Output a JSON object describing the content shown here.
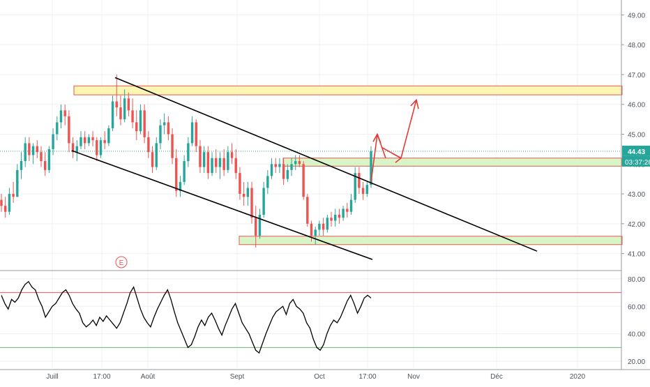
{
  "chart_data": [
    {
      "type": "candlestick",
      "title": "",
      "ylim": [
        40.5,
        49.5
      ],
      "y_ticks": [
        "41.00",
        "42.00",
        "43.00",
        "44.00",
        "45.00",
        "46.00",
        "47.00",
        "48.00",
        "49.00"
      ],
      "x_ticks": [
        "Juill",
        "17:00",
        "Août",
        "Sept",
        "Oct",
        "17:00",
        "Nov",
        "Déc",
        "2020"
      ],
      "last_price": "44.43",
      "countdown": "03:37:26",
      "earnings_marker": "E",
      "grid": true,
      "series": [
        {
          "values": [
            [
              42.8,
              43.0,
              42.4,
              42.6
            ],
            [
              42.6,
              42.9,
              42.2,
              42.4
            ],
            [
              42.4,
              43.2,
              42.3,
              43.0
            ],
            [
              43.0,
              43.4,
              42.7,
              42.9
            ],
            [
              42.9,
              44.0,
              42.9,
              43.8
            ],
            [
              43.8,
              44.4,
              43.5,
              44.1
            ],
            [
              44.1,
              44.9,
              43.9,
              44.7
            ],
            [
              44.7,
              44.9,
              44.1,
              44.3
            ],
            [
              44.3,
              44.7,
              44.0,
              44.6
            ],
            [
              44.6,
              44.8,
              44.2,
              44.4
            ],
            [
              44.4,
              44.6,
              43.9,
              44.1
            ],
            [
              44.1,
              44.4,
              43.6,
              43.8
            ],
            [
              43.8,
              44.6,
              43.7,
              44.5
            ],
            [
              44.5,
              45.2,
              44.3,
              45.0
            ],
            [
              45.0,
              45.6,
              44.8,
              45.4
            ],
            [
              45.4,
              46.0,
              45.2,
              45.8
            ],
            [
              45.8,
              46.0,
              45.3,
              45.6
            ],
            [
              45.6,
              45.8,
              44.4,
              44.7
            ],
            [
              44.7,
              44.9,
              44.2,
              44.4
            ],
            [
              44.4,
              44.8,
              44.1,
              44.6
            ],
            [
              44.6,
              45.1,
              44.5,
              44.9
            ],
            [
              44.9,
              45.1,
              44.5,
              44.7
            ],
            [
              44.7,
              45.0,
              44.6,
              44.9
            ],
            [
              44.9,
              45.1,
              44.6,
              44.8
            ],
            [
              44.8,
              44.9,
              44.1,
              44.3
            ],
            [
              44.3,
              44.9,
              44.2,
              44.8
            ],
            [
              44.8,
              45.1,
              44.5,
              44.7
            ],
            [
              44.7,
              45.3,
              44.6,
              45.2
            ],
            [
              45.2,
              46.3,
              45.1,
              46.1
            ],
            [
              46.1,
              47.0,
              45.6,
              45.9
            ],
            [
              45.9,
              46.3,
              45.3,
              45.5
            ],
            [
              45.5,
              46.5,
              45.4,
              46.2
            ],
            [
              46.2,
              46.4,
              45.6,
              45.8
            ],
            [
              45.8,
              46.2,
              45.2,
              45.4
            ],
            [
              45.4,
              45.8,
              44.8,
              45.1
            ],
            [
              45.1,
              46.0,
              45.0,
              45.8
            ],
            [
              45.8,
              46.0,
              44.7,
              44.9
            ],
            [
              44.9,
              45.1,
              44.2,
              44.4
            ],
            [
              44.4,
              44.6,
              43.7,
              43.9
            ],
            [
              43.9,
              44.9,
              43.8,
              44.7
            ],
            [
              44.7,
              45.5,
              44.5,
              45.3
            ],
            [
              45.3,
              45.7,
              45.0,
              45.4
            ],
            [
              45.4,
              45.6,
              44.8,
              45.0
            ],
            [
              45.0,
              45.2,
              44.0,
              44.2
            ],
            [
              44.2,
              44.5,
              42.9,
              43.1
            ],
            [
              43.1,
              43.6,
              42.9,
              43.4
            ],
            [
              43.4,
              44.3,
              43.3,
              44.1
            ],
            [
              44.1,
              44.9,
              43.9,
              44.7
            ],
            [
              44.7,
              45.6,
              44.6,
              45.4
            ],
            [
              45.4,
              45.5,
              44.4,
              44.6
            ],
            [
              44.6,
              44.8,
              43.7,
              43.9
            ],
            [
              43.9,
              44.6,
              43.7,
              44.4
            ],
            [
              44.4,
              44.6,
              43.5,
              43.7
            ],
            [
              43.7,
              44.4,
              43.6,
              44.2
            ],
            [
              44.2,
              44.5,
              43.7,
              43.9
            ],
            [
              43.9,
              44.4,
              43.5,
              44.2
            ],
            [
              44.2,
              44.5,
              43.6,
              43.8
            ],
            [
              43.8,
              44.6,
              43.7,
              44.4
            ],
            [
              44.4,
              44.7,
              44.0,
              44.2
            ],
            [
              44.2,
              44.5,
              43.5,
              43.7
            ],
            [
              43.7,
              43.9,
              42.8,
              43.0
            ],
            [
              43.0,
              43.4,
              42.6,
              42.9
            ],
            [
              42.9,
              43.4,
              42.6,
              43.2
            ],
            [
              43.2,
              43.4,
              42.0,
              42.2
            ],
            [
              42.2,
              42.6,
              41.2,
              41.6
            ],
            [
              41.6,
              42.5,
              41.5,
              42.3
            ],
            [
              42.3,
              43.4,
              42.2,
              43.2
            ],
            [
              43.2,
              43.8,
              43.0,
              43.6
            ],
            [
              43.6,
              44.2,
              43.5,
              44.0
            ],
            [
              44.0,
              44.2,
              43.7,
              43.9
            ],
            [
              43.9,
              44.2,
              43.7,
              44.0
            ],
            [
              44.0,
              44.2,
              43.3,
              43.5
            ],
            [
              43.5,
              44.0,
              43.4,
              43.8
            ],
            [
              43.8,
              44.2,
              43.6,
              44.0
            ],
            [
              44.0,
              44.3,
              43.8,
              44.1
            ],
            [
              44.1,
              44.3,
              43.9,
              44.0
            ],
            [
              44.0,
              44.1,
              42.8,
              42.9
            ],
            [
              42.9,
              43.0,
              41.9,
              42.0
            ],
            [
              42.0,
              42.1,
              41.4,
              41.6
            ],
            [
              41.6,
              41.9,
              41.3,
              41.8
            ],
            [
              41.8,
              42.1,
              41.6,
              42.0
            ],
            [
              42.0,
              42.2,
              41.6,
              41.8
            ],
            [
              41.8,
              42.3,
              41.7,
              42.2
            ],
            [
              42.2,
              42.4,
              41.9,
              42.1
            ],
            [
              42.1,
              42.5,
              41.9,
              42.3
            ],
            [
              42.3,
              42.5,
              42.0,
              42.2
            ],
            [
              42.2,
              42.6,
              42.1,
              42.5
            ],
            [
              42.5,
              42.7,
              42.2,
              42.4
            ],
            [
              42.4,
              43.0,
              42.3,
              42.8
            ],
            [
              42.8,
              43.9,
              42.7,
              43.7
            ],
            [
              43.7,
              43.9,
              43.0,
              43.2
            ],
            [
              43.2,
              43.4,
              42.8,
              43.0
            ],
            [
              43.0,
              43.4,
              42.9,
              43.3
            ],
            [
              43.3,
              44.6,
              43.2,
              44.43
            ]
          ]
        }
      ]
    },
    {
      "type": "line",
      "ylim": [
        19,
        84
      ],
      "y_ticks": [
        "20.00",
        "40.00",
        "60.00",
        "80.00"
      ],
      "guide_lines": [
        70,
        30
      ],
      "series": [
        {
          "values": [
            68,
            62,
            58,
            65,
            63,
            66,
            72,
            76,
            78,
            74,
            72,
            65,
            60,
            52,
            56,
            60,
            62,
            66,
            70,
            72,
            68,
            62,
            58,
            55,
            48,
            45,
            47,
            50,
            46,
            52,
            49,
            53,
            50,
            47,
            44,
            48,
            55,
            62,
            70,
            74,
            66,
            58,
            52,
            48,
            45,
            52,
            58,
            63,
            68,
            72,
            65,
            56,
            48,
            42,
            36,
            30,
            32,
            38,
            45,
            50,
            46,
            52,
            55,
            50,
            44,
            39,
            46,
            52,
            58,
            62,
            55,
            48,
            44,
            40,
            34,
            28,
            26,
            33,
            40,
            46,
            52,
            56,
            58,
            60,
            54,
            62,
            65,
            60,
            58,
            55,
            48,
            44,
            36,
            30,
            28,
            32,
            40,
            46,
            50,
            48,
            52,
            58,
            64,
            68,
            62,
            55,
            60,
            66,
            68,
            66
          ]
        }
      ]
    }
  ]
}
